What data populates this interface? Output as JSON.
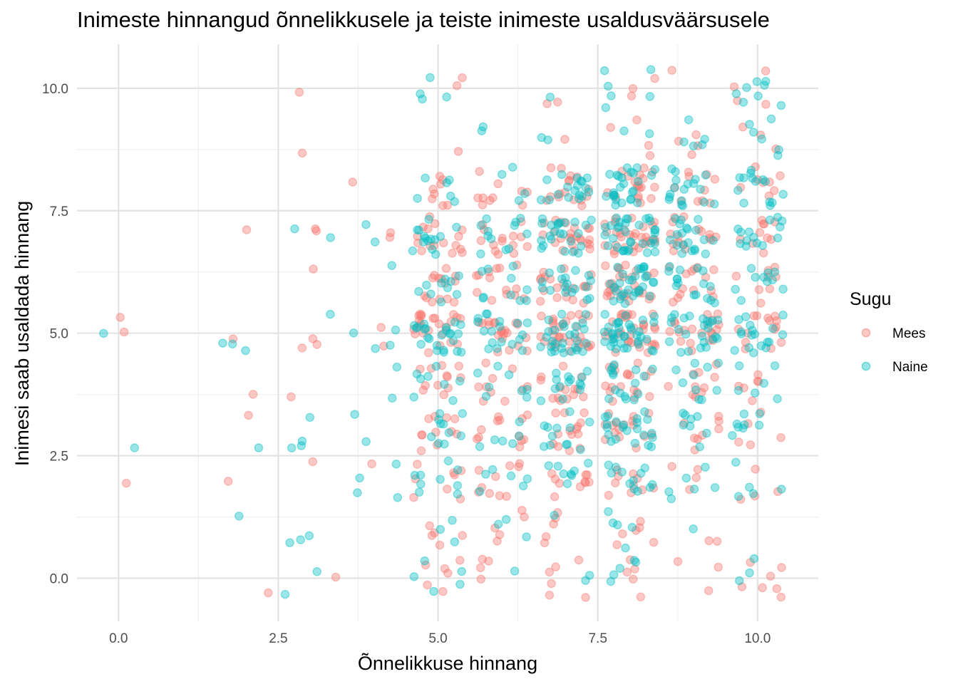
{
  "chart_data": {
    "type": "scatter",
    "title": "Inimeste hinnangud õnnelikkusele ja teiste inimeste usaldusväärsusele",
    "xlabel": "Õnnelikkuse hinnang",
    "ylabel": "Inimesi saab usaldada hinnang",
    "xlim": [
      -0.65,
      10.95
    ],
    "ylim": [
      -0.88,
      10.9
    ],
    "x_ticks": [
      0,
      2.5,
      5,
      7.5,
      10
    ],
    "x_tick_labels": [
      "0.0",
      "2.5",
      "5.0",
      "7.5",
      "10.0"
    ],
    "y_ticks": [
      0,
      2.5,
      5,
      7.5,
      10
    ],
    "y_tick_labels": [
      "0.0",
      "2.5",
      "5.0",
      "7.5",
      "10.0"
    ],
    "grid": true,
    "jitter": 0.4,
    "legend": {
      "title": "Sugu",
      "position": "right",
      "entries": [
        {
          "name": "Mees",
          "color": "#F8766D"
        },
        {
          "name": "Naine",
          "color": "#00BFC4"
        }
      ]
    },
    "series": [
      {
        "name": "Mees",
        "color": "#F8766D",
        "alpha": 0.4,
        "points": [
          {
            "x": 0,
            "y": 5,
            "n": 2
          },
          {
            "x": 0,
            "y": 2,
            "n": 1
          },
          {
            "x": 2,
            "y": 5,
            "n": 1
          },
          {
            "x": 2,
            "y": 4,
            "n": 1
          },
          {
            "x": 2,
            "y": 2,
            "n": 1
          },
          {
            "x": 2,
            "y": 0,
            "n": 1
          },
          {
            "x": 2,
            "y": 7,
            "n": 1
          },
          {
            "x": 2,
            "y": 3,
            "n": 1
          },
          {
            "x": 3,
            "y": 10,
            "n": 1
          },
          {
            "x": 3,
            "y": 9,
            "n": 1
          },
          {
            "x": 3,
            "y": 7,
            "n": 2
          },
          {
            "x": 3,
            "y": 6,
            "n": 1
          },
          {
            "x": 3,
            "y": 5,
            "n": 3
          },
          {
            "x": 3,
            "y": 4,
            "n": 1
          },
          {
            "x": 3,
            "y": 2,
            "n": 1
          },
          {
            "x": 3,
            "y": 0,
            "n": 1
          },
          {
            "x": 4,
            "y": 8,
            "n": 1
          },
          {
            "x": 4,
            "y": 7,
            "n": 2
          },
          {
            "x": 4,
            "y": 5,
            "n": 2
          },
          {
            "x": 4,
            "y": 2,
            "n": 1
          },
          {
            "x": 5,
            "y": 10,
            "n": 2
          },
          {
            "x": 5,
            "y": 9,
            "n": 1
          },
          {
            "x": 5,
            "y": 8,
            "n": 8
          },
          {
            "x": 5,
            "y": 7,
            "n": 16
          },
          {
            "x": 5,
            "y": 6,
            "n": 14
          },
          {
            "x": 5,
            "y": 5,
            "n": 24
          },
          {
            "x": 5,
            "y": 4,
            "n": 12
          },
          {
            "x": 5,
            "y": 3,
            "n": 11
          },
          {
            "x": 5,
            "y": 2,
            "n": 8
          },
          {
            "x": 5,
            "y": 1,
            "n": 5
          },
          {
            "x": 5,
            "y": 0,
            "n": 6
          },
          {
            "x": 6,
            "y": 8,
            "n": 10
          },
          {
            "x": 6,
            "y": 7,
            "n": 14
          },
          {
            "x": 6,
            "y": 6,
            "n": 14
          },
          {
            "x": 6,
            "y": 5,
            "n": 20
          },
          {
            "x": 6,
            "y": 4,
            "n": 10
          },
          {
            "x": 6,
            "y": 3,
            "n": 12
          },
          {
            "x": 6,
            "y": 2,
            "n": 10
          },
          {
            "x": 6,
            "y": 1,
            "n": 5
          },
          {
            "x": 6,
            "y": 0,
            "n": 4
          },
          {
            "x": 7,
            "y": 10,
            "n": 2
          },
          {
            "x": 7,
            "y": 9,
            "n": 1
          },
          {
            "x": 7,
            "y": 8,
            "n": 16
          },
          {
            "x": 7,
            "y": 7,
            "n": 24
          },
          {
            "x": 7,
            "y": 6,
            "n": 20
          },
          {
            "x": 7,
            "y": 5,
            "n": 32
          },
          {
            "x": 7,
            "y": 4,
            "n": 14
          },
          {
            "x": 7,
            "y": 3,
            "n": 14
          },
          {
            "x": 7,
            "y": 2,
            "n": 10
          },
          {
            "x": 7,
            "y": 1,
            "n": 5
          },
          {
            "x": 7,
            "y": 0,
            "n": 6
          },
          {
            "x": 8,
            "y": 10,
            "n": 3
          },
          {
            "x": 8,
            "y": 9,
            "n": 4
          },
          {
            "x": 8,
            "y": 8,
            "n": 18
          },
          {
            "x": 8,
            "y": 7,
            "n": 30
          },
          {
            "x": 8,
            "y": 6,
            "n": 28
          },
          {
            "x": 8,
            "y": 5,
            "n": 32
          },
          {
            "x": 8,
            "y": 4,
            "n": 18
          },
          {
            "x": 8,
            "y": 3,
            "n": 16
          },
          {
            "x": 8,
            "y": 2,
            "n": 10
          },
          {
            "x": 8,
            "y": 1,
            "n": 6
          },
          {
            "x": 8,
            "y": 0,
            "n": 5
          },
          {
            "x": 9,
            "y": 10,
            "n": 1
          },
          {
            "x": 9,
            "y": 9,
            "n": 4
          },
          {
            "x": 9,
            "y": 8,
            "n": 10
          },
          {
            "x": 9,
            "y": 7,
            "n": 16
          },
          {
            "x": 9,
            "y": 6,
            "n": 14
          },
          {
            "x": 9,
            "y": 5,
            "n": 20
          },
          {
            "x": 9,
            "y": 4,
            "n": 10
          },
          {
            "x": 9,
            "y": 3,
            "n": 8
          },
          {
            "x": 9,
            "y": 2,
            "n": 4
          },
          {
            "x": 9,
            "y": 1,
            "n": 2
          },
          {
            "x": 9,
            "y": 0,
            "n": 3
          },
          {
            "x": 10,
            "y": 10,
            "n": 4
          },
          {
            "x": 10,
            "y": 9,
            "n": 3
          },
          {
            "x": 10,
            "y": 8,
            "n": 8
          },
          {
            "x": 10,
            "y": 7,
            "n": 10
          },
          {
            "x": 10,
            "y": 6,
            "n": 8
          },
          {
            "x": 10,
            "y": 5,
            "n": 14
          },
          {
            "x": 10,
            "y": 4,
            "n": 6
          },
          {
            "x": 10,
            "y": 3,
            "n": 5
          },
          {
            "x": 10,
            "y": 2,
            "n": 4
          },
          {
            "x": 10,
            "y": 0,
            "n": 7
          }
        ]
      },
      {
        "name": "Naine",
        "color": "#00BFC4",
        "alpha": 0.4,
        "points": [
          {
            "x": 0,
            "y": 5,
            "n": 1
          },
          {
            "x": 0,
            "y": 3,
            "n": 1
          },
          {
            "x": 2,
            "y": 5,
            "n": 3
          },
          {
            "x": 2,
            "y": 3,
            "n": 1
          },
          {
            "x": 2,
            "y": 1,
            "n": 1
          },
          {
            "x": 3,
            "y": 7,
            "n": 2
          },
          {
            "x": 3,
            "y": 5,
            "n": 1
          },
          {
            "x": 3,
            "y": 3,
            "n": 4
          },
          {
            "x": 3,
            "y": 1,
            "n": 3
          },
          {
            "x": 3,
            "y": 0,
            "n": 2
          },
          {
            "x": 4,
            "y": 7,
            "n": 2
          },
          {
            "x": 4,
            "y": 6,
            "n": 1
          },
          {
            "x": 4,
            "y": 5,
            "n": 4
          },
          {
            "x": 4,
            "y": 4,
            "n": 2
          },
          {
            "x": 4,
            "y": 3,
            "n": 2
          },
          {
            "x": 4,
            "y": 2,
            "n": 4
          },
          {
            "x": 5,
            "y": 10,
            "n": 4
          },
          {
            "x": 5,
            "y": 8,
            "n": 6
          },
          {
            "x": 5,
            "y": 7,
            "n": 14
          },
          {
            "x": 5,
            "y": 6,
            "n": 10
          },
          {
            "x": 5,
            "y": 5,
            "n": 24
          },
          {
            "x": 5,
            "y": 4,
            "n": 8
          },
          {
            "x": 5,
            "y": 3,
            "n": 10
          },
          {
            "x": 5,
            "y": 2,
            "n": 9
          },
          {
            "x": 5,
            "y": 1,
            "n": 3
          },
          {
            "x": 5,
            "y": 0,
            "n": 5
          },
          {
            "x": 6,
            "y": 9,
            "n": 2
          },
          {
            "x": 6,
            "y": 8,
            "n": 4
          },
          {
            "x": 6,
            "y": 7,
            "n": 12
          },
          {
            "x": 6,
            "y": 6,
            "n": 10
          },
          {
            "x": 6,
            "y": 5,
            "n": 18
          },
          {
            "x": 6,
            "y": 4,
            "n": 8
          },
          {
            "x": 6,
            "y": 3,
            "n": 6
          },
          {
            "x": 6,
            "y": 2,
            "n": 6
          },
          {
            "x": 6,
            "y": 1,
            "n": 3
          },
          {
            "x": 6,
            "y": 0,
            "n": 1
          },
          {
            "x": 7,
            "y": 10,
            "n": 1
          },
          {
            "x": 7,
            "y": 9,
            "n": 2
          },
          {
            "x": 7,
            "y": 8,
            "n": 18
          },
          {
            "x": 7,
            "y": 7,
            "n": 24
          },
          {
            "x": 7,
            "y": 6,
            "n": 18
          },
          {
            "x": 7,
            "y": 5,
            "n": 28
          },
          {
            "x": 7,
            "y": 4,
            "n": 14
          },
          {
            "x": 7,
            "y": 3,
            "n": 12
          },
          {
            "x": 7,
            "y": 2,
            "n": 8
          },
          {
            "x": 7,
            "y": 1,
            "n": 1
          },
          {
            "x": 7,
            "y": 0,
            "n": 2
          },
          {
            "x": 8,
            "y": 10,
            "n": 6
          },
          {
            "x": 8,
            "y": 9,
            "n": 2
          },
          {
            "x": 8,
            "y": 8,
            "n": 26
          },
          {
            "x": 8,
            "y": 7,
            "n": 34
          },
          {
            "x": 8,
            "y": 6,
            "n": 30
          },
          {
            "x": 8,
            "y": 5,
            "n": 36
          },
          {
            "x": 8,
            "y": 4,
            "n": 16
          },
          {
            "x": 8,
            "y": 3,
            "n": 22
          },
          {
            "x": 8,
            "y": 2,
            "n": 12
          },
          {
            "x": 8,
            "y": 1,
            "n": 5
          },
          {
            "x": 8,
            "y": 0,
            "n": 5
          },
          {
            "x": 9,
            "y": 9,
            "n": 5
          },
          {
            "x": 9,
            "y": 8,
            "n": 18
          },
          {
            "x": 9,
            "y": 7,
            "n": 20
          },
          {
            "x": 9,
            "y": 6,
            "n": 16
          },
          {
            "x": 9,
            "y": 5,
            "n": 24
          },
          {
            "x": 9,
            "y": 4,
            "n": 10
          },
          {
            "x": 9,
            "y": 3,
            "n": 8
          },
          {
            "x": 9,
            "y": 2,
            "n": 6
          },
          {
            "x": 9,
            "y": 1,
            "n": 1
          },
          {
            "x": 10,
            "y": 10,
            "n": 8
          },
          {
            "x": 10,
            "y": 9,
            "n": 6
          },
          {
            "x": 10,
            "y": 8,
            "n": 14
          },
          {
            "x": 10,
            "y": 7,
            "n": 14
          },
          {
            "x": 10,
            "y": 6,
            "n": 10
          },
          {
            "x": 10,
            "y": 5,
            "n": 18
          },
          {
            "x": 10,
            "y": 4,
            "n": 6
          },
          {
            "x": 10,
            "y": 3,
            "n": 8
          },
          {
            "x": 10,
            "y": 2,
            "n": 5
          },
          {
            "x": 10,
            "y": 0,
            "n": 3
          }
        ]
      }
    ]
  }
}
